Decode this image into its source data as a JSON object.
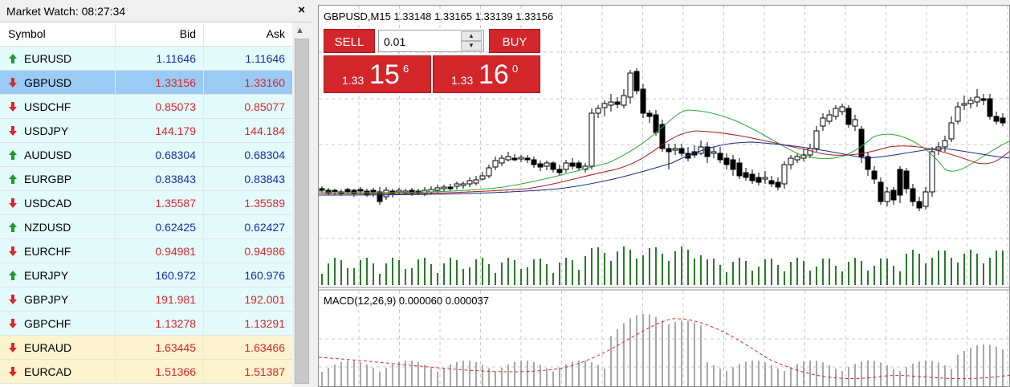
{
  "market_watch": {
    "title": "Market Watch: 08:27:34",
    "close_icon": "×",
    "columns": {
      "symbol": "Symbol",
      "bid": "Bid",
      "ask": "Ask"
    },
    "rows": [
      {
        "symbol": "EURUSD",
        "bid": "1.11646",
        "ask": "1.11646",
        "dir": "up"
      },
      {
        "symbol": "GBPUSD",
        "bid": "1.33156",
        "ask": "1.33160",
        "dir": "down",
        "selected": true
      },
      {
        "symbol": "USDCHF",
        "bid": "0.85073",
        "ask": "0.85077",
        "dir": "down"
      },
      {
        "symbol": "USDJPY",
        "bid": "144.179",
        "ask": "144.184",
        "dir": "down"
      },
      {
        "symbol": "AUDUSD",
        "bid": "0.68304",
        "ask": "0.68304",
        "dir": "up"
      },
      {
        "symbol": "EURGBP",
        "bid": "0.83843",
        "ask": "0.83843",
        "dir": "up"
      },
      {
        "symbol": "USDCAD",
        "bid": "1.35587",
        "ask": "1.35589",
        "dir": "down"
      },
      {
        "symbol": "NZDUSD",
        "bid": "0.62425",
        "ask": "0.62427",
        "dir": "up"
      },
      {
        "symbol": "EURCHF",
        "bid": "0.94981",
        "ask": "0.94986",
        "dir": "down"
      },
      {
        "symbol": "EURJPY",
        "bid": "160.972",
        "ask": "160.976",
        "dir": "up"
      },
      {
        "symbol": "GBPJPY",
        "bid": "191.981",
        "ask": "192.001",
        "dir": "down"
      },
      {
        "symbol": "GBPCHF",
        "bid": "1.13278",
        "ask": "1.13291",
        "dir": "down"
      },
      {
        "symbol": "EURAUD",
        "bid": "1.63445",
        "ask": "1.63466",
        "dir": "down",
        "highlight": true
      },
      {
        "symbol": "EURCAD",
        "bid": "1.51366",
        "ask": "1.51387",
        "dir": "down",
        "highlight": true
      }
    ],
    "colors": {
      "up": "#1c2da0",
      "down": "#d8262a",
      "arrow_up": "#1e9a2a",
      "arrow_down": "#d8262a"
    }
  },
  "chart": {
    "title": "GBPUSD,M15  1.33148 1.33165 1.33139 1.33156",
    "one_click": {
      "sell_label": "SELL",
      "buy_label": "BUY",
      "lot": "0.01",
      "spin_up": "▲",
      "spin_down": "▼",
      "sell": {
        "prefix": "1.33",
        "big": "15",
        "sup": "6"
      },
      "buy": {
        "prefix": "1.33",
        "big": "16",
        "sup": "0"
      }
    },
    "macd_label": "MACD(12,26,9) 0.000060 0.000037"
  }
}
